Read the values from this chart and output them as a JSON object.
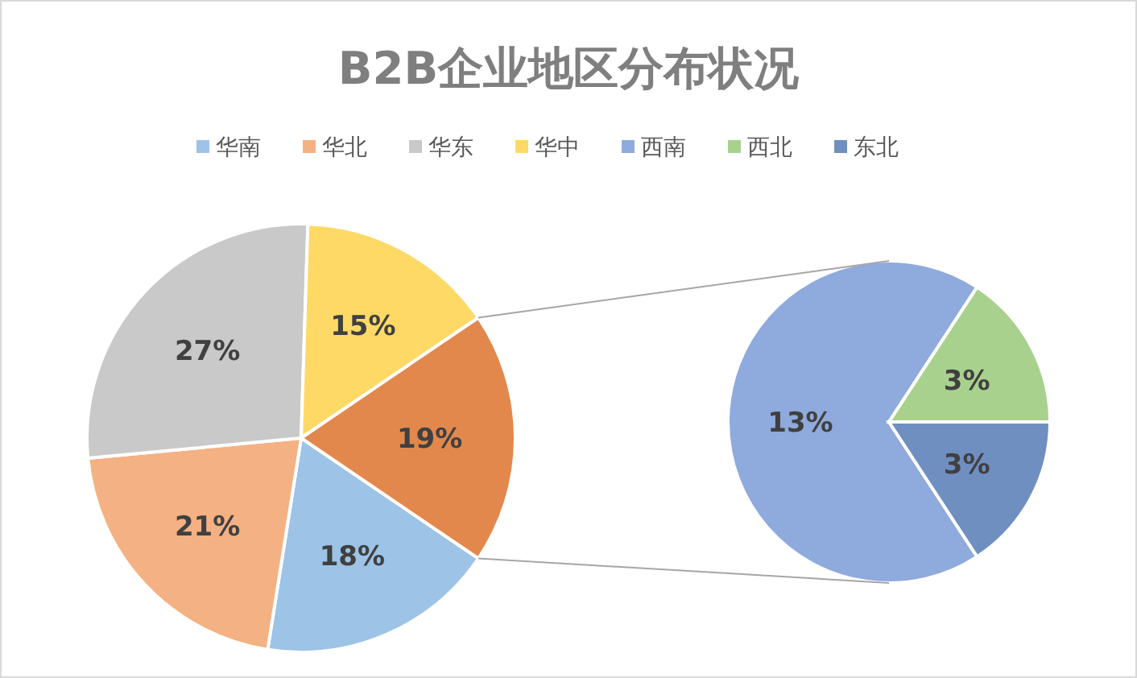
{
  "chart_data": [
    {
      "type": "pie",
      "title": "B2B企业地区分布状况",
      "legend": "top",
      "categories": [
        "华南",
        "华北",
        "华东",
        "华中",
        null
      ],
      "values": [
        18,
        21,
        27,
        15,
        19
      ],
      "colors": [
        "#9dc3e6",
        "#f4b183",
        "#c9c9c9",
        "#ffd966",
        "#e2884c"
      ],
      "value_labels": [
        "18%",
        "21%",
        "27%",
        "15%",
        "19%"
      ]
    },
    {
      "type": "pie",
      "legend": "top",
      "categories": [
        "西南",
        "西北",
        "东北"
      ],
      "values": [
        13,
        3,
        3
      ],
      "colors": [
        "#8faadc",
        "#a9d18e",
        "#6f8fc0"
      ],
      "value_labels": [
        "13%",
        "3%",
        "3%"
      ]
    }
  ]
}
